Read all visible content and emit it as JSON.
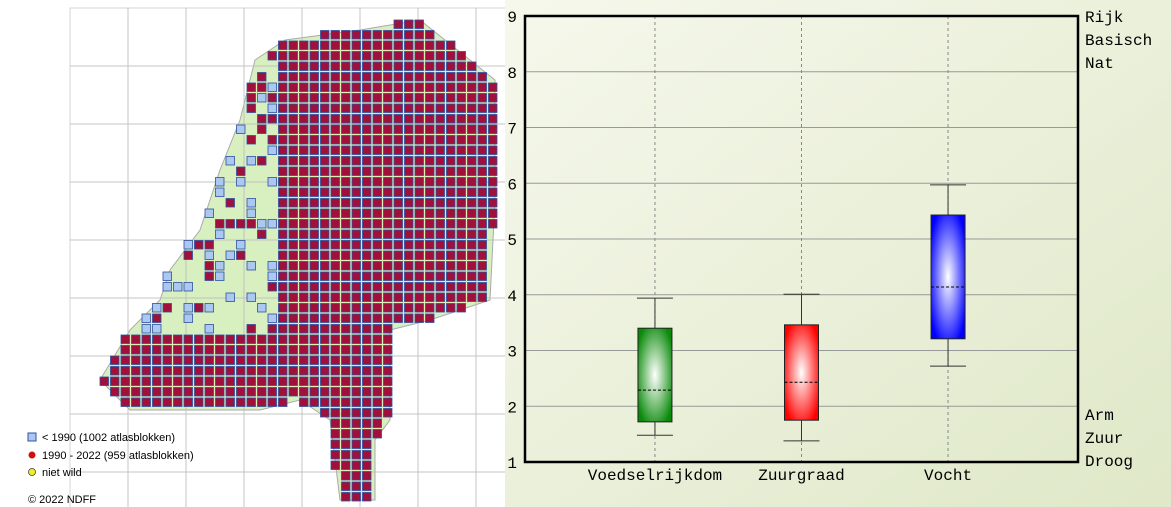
{
  "map": {
    "legend": [
      "< 1990  (1002 atlasblokken)",
      "1990 - 2022 (959 atlasblokken)",
      "niet wild"
    ],
    "copyright": "© 2022 NDFF"
  },
  "chart_data": {
    "type": "box",
    "categories": [
      "Voedselrijkdom",
      "Zuurgraad",
      "Vocht"
    ],
    "series": [
      {
        "color": "#0a8a0a",
        "min": [
          1.48
        ],
        "q1": [
          1.72
        ],
        "median": [
          2.29
        ],
        "q3": [
          3.4
        ],
        "max": [
          3.94
        ]
      },
      {
        "color": "#ff0000",
        "min": [
          1.38
        ],
        "q1": [
          1.75
        ],
        "median": [
          2.43
        ],
        "q3": [
          3.46
        ],
        "max": [
          4.01
        ]
      },
      {
        "color": "#0000ff",
        "min": [
          2.72
        ],
        "q1": [
          3.21
        ],
        "median": [
          4.14
        ],
        "q3": [
          5.43
        ],
        "max": [
          5.97
        ]
      }
    ],
    "ylim": [
      1,
      9
    ],
    "yticks": [
      1,
      2,
      3,
      4,
      5,
      6,
      7,
      8,
      9
    ],
    "grid": true,
    "top_labels": [
      "Rijk",
      "Basisch",
      "Nat"
    ],
    "bottom_labels": [
      "Arm",
      "Zuur",
      "Droog"
    ]
  }
}
